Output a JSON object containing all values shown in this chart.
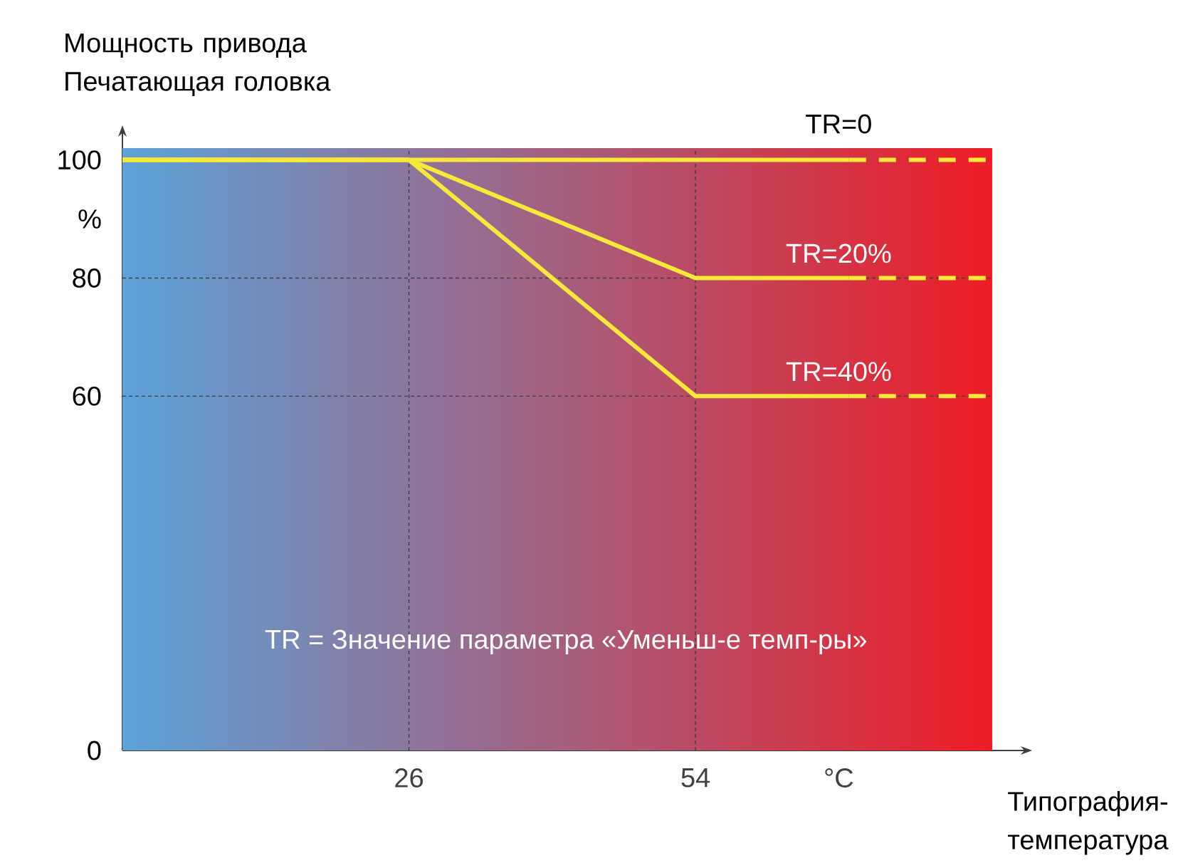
{
  "chart_data": {
    "type": "line",
    "xlabel": "Типография-температура",
    "ylabel": "Мощность привода Печатающая головка",
    "annotations": [
      "TR = Значение параметра «Уменьш-е темп-ры»"
    ],
    "xlim": [
      -2,
      83
    ],
    "ylim": [
      0,
      102
    ],
    "xticks": [
      26,
      54,
      {
        "value": 68,
        "label": "°C"
      }
    ],
    "yticks": [
      0,
      60,
      80,
      {
        "value": 90,
        "label": "%"
      },
      100
    ],
    "ref_lines": [
      {
        "axis": "x",
        "value": 26,
        "color": "#404040",
        "line_style": "dashed"
      },
      {
        "axis": "x",
        "value": 54,
        "color": "#404040",
        "line_style": "dashed"
      },
      {
        "axis": "y",
        "value": 80,
        "color": "#404040",
        "line_style": "dashed"
      },
      {
        "axis": "y",
        "value": 60,
        "color": "#404040",
        "line_style": "dashed"
      }
    ],
    "series": [
      {
        "name": "TR=0",
        "color": "#f7e839",
        "x": [
          -2,
          69
        ],
        "values": [
          100,
          100
        ]
      },
      {
        "color": "#f7e839",
        "line_style": "dashed",
        "x": [
          69,
          83
        ],
        "values": [
          100,
          100
        ]
      },
      {
        "name": "TR=20%",
        "color": "#f7e839",
        "x": [
          -2,
          26,
          54,
          69
        ],
        "values": [
          100,
          100,
          80,
          80
        ]
      },
      {
        "color": "#f7e839",
        "line_style": "dashed",
        "x": [
          69,
          83
        ],
        "values": [
          80,
          80
        ]
      },
      {
        "name": "TR=40%",
        "color": "#f7e839",
        "x": [
          -2,
          26,
          54,
          69
        ],
        "values": [
          100,
          100,
          60,
          60
        ]
      },
      {
        "color": "#f7e839",
        "line_style": "dashed",
        "x": [
          69,
          83
        ],
        "values": [
          60,
          60
        ]
      }
    ]
  }
}
